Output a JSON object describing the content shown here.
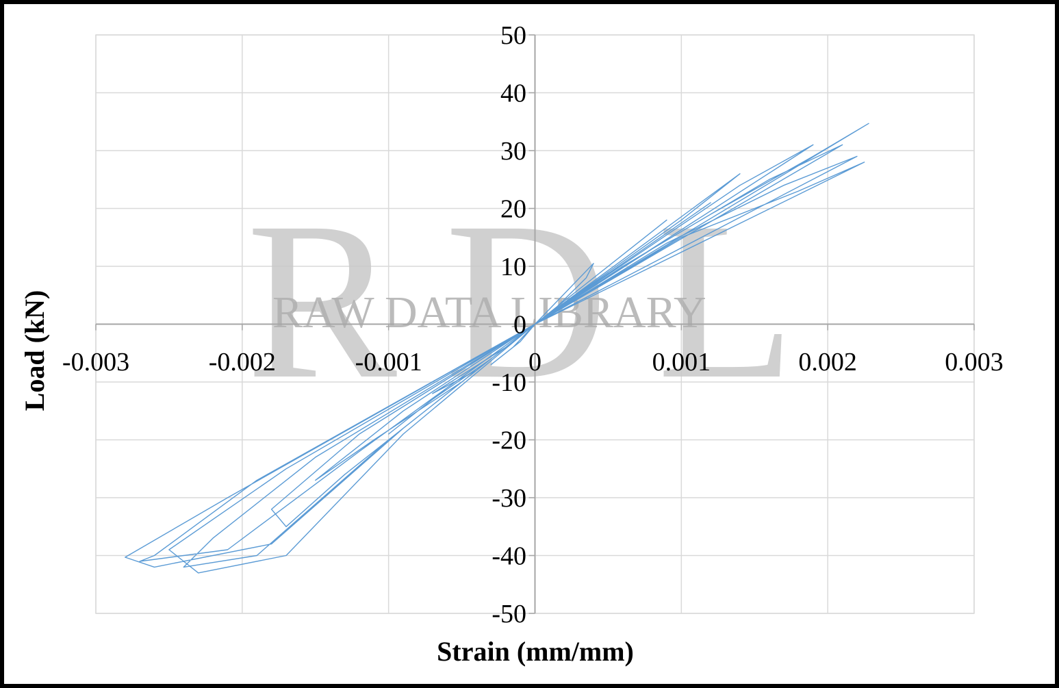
{
  "chart_data": {
    "type": "line",
    "xlabel": "Strain (mm/mm)",
    "ylabel": "Load (kN)",
    "xlim": [
      -0.003,
      0.003
    ],
    "ylim": [
      -50,
      50
    ],
    "xticks": [
      "-0.003",
      "-0.002",
      "-0.001",
      "0",
      "0.001",
      "0.002",
      "0.003"
    ],
    "yticks": [
      "50",
      "40",
      "30",
      "20",
      "10",
      "0",
      "-10",
      "-20",
      "-30",
      "-40",
      "-50"
    ],
    "grid": true,
    "legend": "none",
    "series_color": "#5b9bd5",
    "series": [
      {
        "values": [
          [
            0,
            0
          ],
          [
            0.0004,
            10.5
          ],
          [
            0.00035,
            8
          ],
          [
            0.00015,
            3
          ],
          [
            0,
            0
          ],
          [
            -0.00015,
            -4
          ],
          [
            -0.0003,
            -7
          ],
          [
            -0.0002,
            -5
          ],
          [
            -0.0001,
            -3
          ],
          [
            0,
            0
          ],
          [
            0.0009,
            18
          ],
          [
            0.0005,
            10
          ],
          [
            0.0002,
            4
          ],
          [
            0,
            0
          ],
          [
            -0.0004,
            -8
          ],
          [
            -0.0007,
            -12
          ],
          [
            -0.00045,
            -8
          ],
          [
            -0.0002,
            -4
          ],
          [
            0,
            0
          ],
          [
            0.0012,
            21
          ],
          [
            0.0008,
            14
          ],
          [
            0.0004,
            7
          ],
          [
            0,
            0
          ],
          [
            -0.0006,
            -11
          ],
          [
            -0.001,
            -19
          ],
          [
            -0.0007,
            -13
          ],
          [
            -0.0003,
            -6
          ],
          [
            0,
            0
          ],
          [
            0.0014,
            26
          ],
          [
            0.001,
            18
          ],
          [
            0.0005,
            9
          ],
          [
            0,
            0
          ],
          [
            -0.0009,
            -15
          ],
          [
            -0.0015,
            -27
          ],
          [
            -0.0011,
            -20
          ],
          [
            -0.0005,
            -10
          ],
          [
            0,
            0
          ],
          [
            0.0019,
            31
          ],
          [
            0.0014,
            24
          ],
          [
            0.0007,
            12
          ],
          [
            0,
            0
          ],
          [
            -0.0012,
            -19
          ],
          [
            -0.0018,
            -32
          ],
          [
            -0.0017,
            -35
          ],
          [
            -0.0013,
            -26
          ],
          [
            -0.0006,
            -12
          ],
          [
            0,
            0
          ],
          [
            0.0021,
            31
          ],
          [
            0.0016,
            25
          ],
          [
            0.0008,
            13
          ],
          [
            0,
            0
          ],
          [
            -0.0015,
            -23
          ],
          [
            -0.0022,
            -37
          ],
          [
            -0.0024,
            -42
          ],
          [
            -0.0019,
            -40
          ],
          [
            -0.001,
            -20
          ],
          [
            0,
            0
          ],
          [
            0.0022,
            29
          ],
          [
            0.0017,
            24
          ],
          [
            0.0009,
            14
          ],
          [
            0,
            0
          ],
          [
            -0.0017,
            -25
          ],
          [
            -0.0025,
            -39
          ],
          [
            -0.0023,
            -43
          ],
          [
            -0.0017,
            -40
          ],
          [
            -0.0009,
            -19
          ],
          [
            0,
            0
          ],
          [
            0.00225,
            28
          ],
          [
            0.0018,
            23
          ],
          [
            0.001,
            15
          ],
          [
            0,
            0
          ],
          [
            -0.0019,
            -27
          ],
          [
            -0.0026,
            -40
          ],
          [
            -0.0027,
            -41
          ],
          [
            -0.0021,
            -39
          ],
          [
            -0.0012,
            -22
          ],
          [
            0,
            0
          ],
          [
            0.00228,
            34.7
          ],
          [
            0.0019,
            29
          ],
          [
            0.0012,
            19
          ],
          [
            0.0006,
            10
          ],
          [
            0,
            0
          ],
          [
            -0.0021,
            -30
          ],
          [
            -0.0028,
            -40.3
          ],
          [
            -0.0026,
            -42
          ],
          [
            -0.0018,
            -38
          ],
          [
            -0.0009,
            -18
          ],
          [
            0,
            0
          ]
        ]
      }
    ]
  },
  "watermark": {
    "logo_letters": "RDL",
    "logo_caption": "RAW DATA LIBRARY"
  }
}
